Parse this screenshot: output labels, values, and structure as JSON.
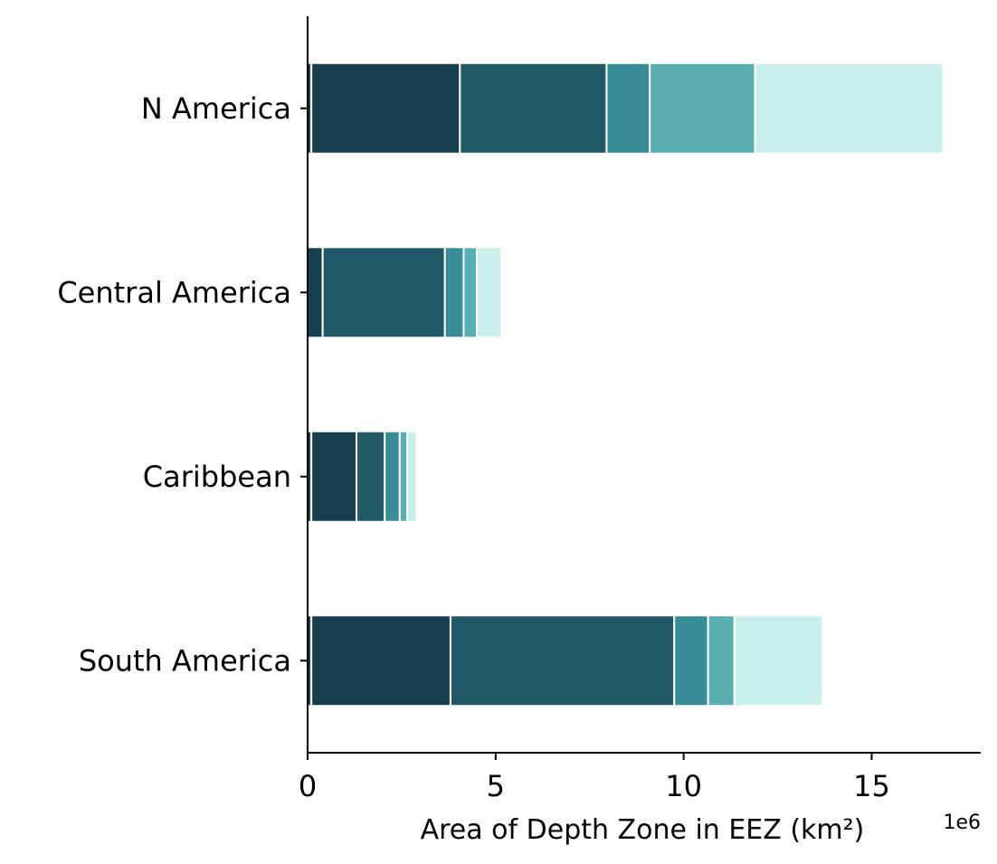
{
  "chart_data": {
    "type": "bar",
    "orientation": "horizontal",
    "stacked": true,
    "categories": [
      "N America",
      "Central America",
      "Caribbean",
      "South America"
    ],
    "series": [
      {
        "values": [
          0.1,
          0.0,
          0.1,
          0.1
        ],
        "color": "#173e4e"
      },
      {
        "values": [
          3.95,
          0.4,
          1.2,
          3.7
        ],
        "color": "#173e4e"
      },
      {
        "values": [
          3.9,
          3.25,
          0.75,
          5.95
        ],
        "color": "#205965"
      },
      {
        "values": [
          1.15,
          0.5,
          0.4,
          0.9
        ],
        "color": "#388c95"
      },
      {
        "values": [
          2.8,
          0.35,
          0.2,
          0.7
        ],
        "color": "#59aeb1"
      },
      {
        "values": [
          5.0,
          0.65,
          0.25,
          2.35
        ],
        "color": "#c9efeb"
      }
    ],
    "xlabel": "Area of Depth Zone in EEZ (km²)",
    "x_offset_label": "1e6",
    "xlim": [
      0,
      17.9
    ],
    "xticks": [
      0,
      5,
      10,
      15
    ],
    "xtick_labels": [
      "0",
      "5",
      "10",
      "15"
    ],
    "grid": false,
    "legend": "none"
  }
}
